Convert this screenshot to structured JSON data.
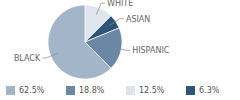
{
  "chart_data": {
    "type": "pie",
    "categories": [
      "WHITE",
      "ASIAN",
      "HISPANIC",
      "BLACK"
    ],
    "values": [
      12.5,
      6.3,
      18.8,
      62.5
    ],
    "value_labels": [
      "12.5%",
      "6.3%",
      "18.8%",
      "62.5%"
    ],
    "colors": [
      "#dfe5ec",
      "#2e5578",
      "#6b87a6",
      "#a3b5c9"
    ],
    "legend": "bottom"
  }
}
